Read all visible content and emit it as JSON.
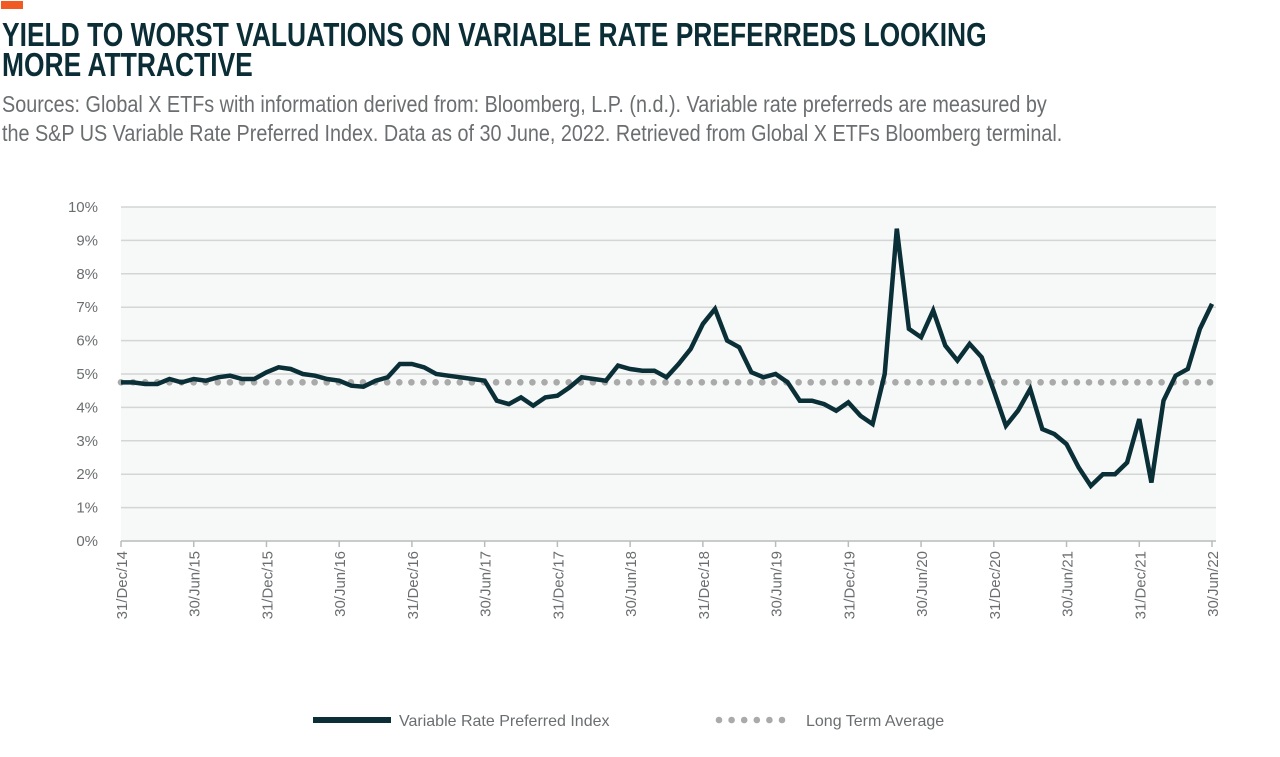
{
  "colors": {
    "accent": "#f15a22",
    "line": "#0a2f36",
    "average": "#aaaaaa",
    "plot_bg": "#f7f9f9",
    "grid": "#d4d6d6"
  },
  "chart_data": {
    "type": "line",
    "title": "YIELD TO WORST VALUATIONS ON VARIABLE RATE PREFERREDS LOOKING MORE ATTRACTIVE",
    "title_lines": [
      "YIELD TO WORST VALUATIONS ON VARIABLE RATE PREFERREDS LOOKING",
      "MORE ATTRACTIVE"
    ],
    "subtitle_lines": [
      "Sources: Global X ETFs with information derived from: Bloomberg, L.P. (n.d.). Variable rate preferreds are measured by",
      "the S&P US Variable Rate Preferred Index. Data as of 30 June, 2022. Retrieved from Global X ETFs Bloomberg terminal."
    ],
    "xlabel": "",
    "ylabel": "",
    "ylim": [
      0,
      10
    ],
    "y_ticks": [
      "0%",
      "1%",
      "2%",
      "3%",
      "4%",
      "5%",
      "6%",
      "7%",
      "8%",
      "9%",
      "10%"
    ],
    "x_tick_labels": [
      "31/Dec/14",
      "30/Jun/15",
      "31/Dec/15",
      "30/Jun/16",
      "31/Dec/16",
      "30/Jun/17",
      "31/Dec/17",
      "30/Jun/18",
      "31/Dec/18",
      "30/Jun/19",
      "31/Dec/19",
      "30/Jun/20",
      "31/Dec/20",
      "30/Jun/21",
      "31/Dec/21",
      "30/Jun/22"
    ],
    "x_tick_every_months": 6,
    "grid": true,
    "legend_position": "bottom",
    "series": [
      {
        "name": "Variable Rate Preferred Index",
        "style": "solid",
        "values": [
          4.75,
          4.75,
          4.7,
          4.7,
          4.85,
          4.75,
          4.85,
          4.8,
          4.9,
          4.95,
          4.85,
          4.85,
          5.05,
          5.2,
          5.15,
          5.0,
          4.95,
          4.85,
          4.8,
          4.65,
          4.62,
          4.8,
          4.9,
          5.3,
          5.3,
          5.2,
          5.0,
          4.95,
          4.9,
          4.85,
          4.8,
          4.2,
          4.1,
          4.3,
          4.05,
          4.3,
          4.35,
          4.6,
          4.9,
          4.85,
          4.8,
          5.25,
          5.15,
          5.1,
          5.1,
          4.9,
          5.3,
          5.75,
          6.5,
          6.95,
          6.0,
          5.8,
          5.05,
          4.9,
          5.0,
          4.75,
          4.2,
          4.2,
          4.1,
          3.9,
          4.15,
          3.75,
          3.5,
          5.0,
          9.35,
          6.35,
          6.1,
          6.9,
          5.85,
          5.4,
          5.9,
          5.5,
          4.5,
          3.45,
          3.9,
          4.55,
          3.35,
          3.2,
          2.9,
          2.2,
          1.65,
          2.0,
          2.0,
          2.35,
          3.65,
          1.75,
          4.2,
          4.95,
          5.15,
          6.35,
          7.1
        ]
      },
      {
        "name": "Long Term Average",
        "style": "dotted",
        "value": 4.75
      }
    ]
  }
}
